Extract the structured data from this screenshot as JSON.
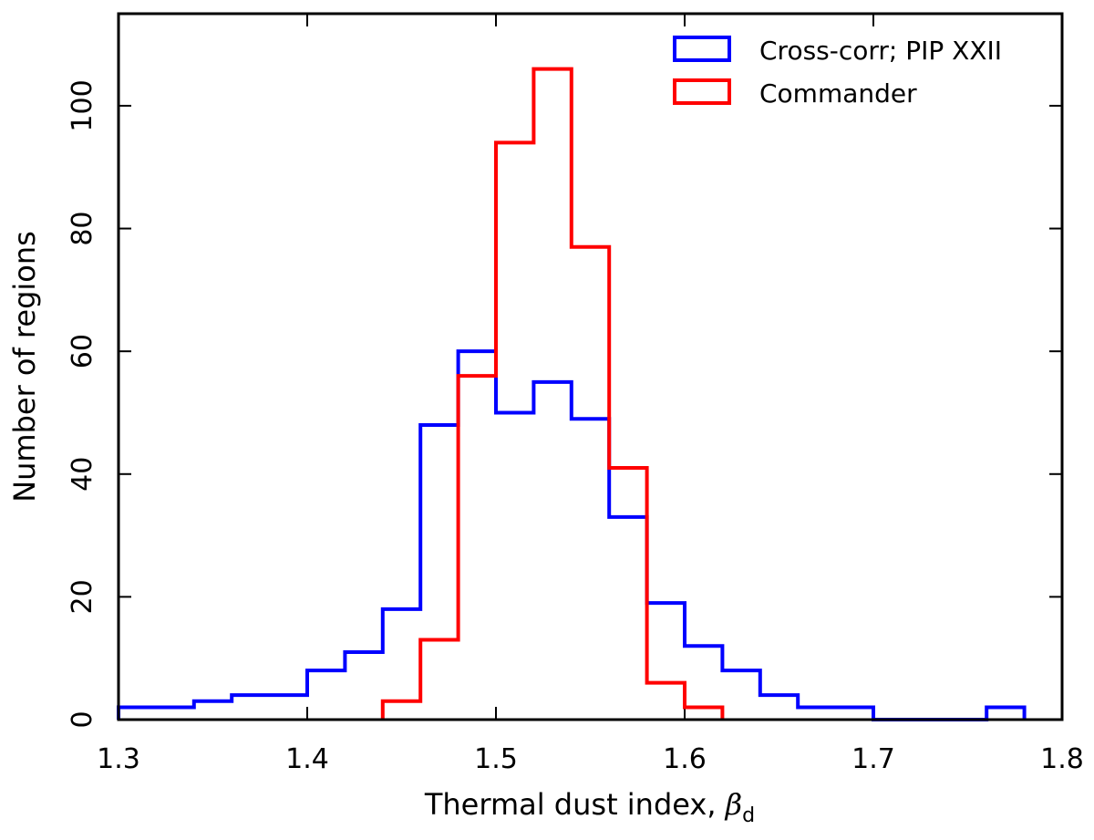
{
  "chart_data": {
    "type": "histogram",
    "xlabel": "Thermal dust index, ",
    "xlabel_math_symbol": "β",
    "xlabel_math_subscript": "d",
    "ylabel": "Number of regions",
    "xlim": [
      1.3,
      1.8
    ],
    "ylim": [
      0,
      115
    ],
    "x_ticks": [
      1.3,
      1.4,
      1.5,
      1.6,
      1.7,
      1.8
    ],
    "x_tick_labels": [
      "1.3",
      "1.4",
      "1.5",
      "1.6",
      "1.7",
      "1.8"
    ],
    "y_ticks": [
      0,
      20,
      40,
      60,
      80,
      100
    ],
    "y_tick_labels": [
      "0",
      "20",
      "40",
      "60",
      "80",
      "100"
    ],
    "grid": false,
    "legend_position": "top-right",
    "bin_width": 0.02,
    "series": [
      {
        "name": "Cross-corr; PIP XXII",
        "color": "#0000ff",
        "bin_starts": [
          1.3,
          1.32,
          1.34,
          1.36,
          1.38,
          1.4,
          1.42,
          1.44,
          1.46,
          1.48,
          1.5,
          1.52,
          1.54,
          1.56,
          1.58,
          1.6,
          1.62,
          1.64,
          1.66,
          1.68,
          1.7,
          1.72,
          1.74,
          1.76
        ],
        "counts": [
          2,
          2,
          3,
          4,
          4,
          8,
          11,
          18,
          48,
          60,
          50,
          55,
          49,
          33,
          19,
          12,
          8,
          4,
          2,
          2,
          0,
          0,
          0,
          2
        ]
      },
      {
        "name": "Commander",
        "color": "#ff0000",
        "bin_starts": [
          1.44,
          1.46,
          1.48,
          1.5,
          1.52,
          1.54,
          1.56,
          1.58,
          1.6
        ],
        "counts": [
          3,
          13,
          56,
          94,
          106,
          77,
          41,
          6,
          2
        ]
      }
    ]
  }
}
